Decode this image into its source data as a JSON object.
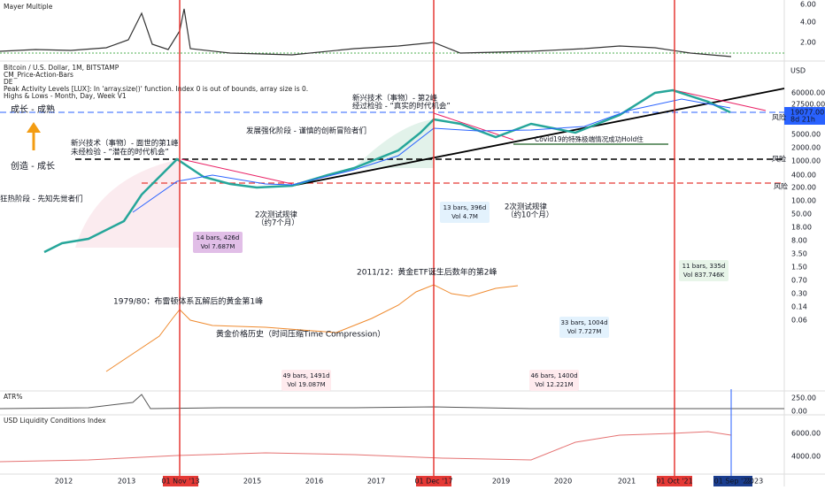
{
  "panes": {
    "mayer": {
      "title": "Mayer Multiple",
      "axis": [
        "6.00",
        "4.00",
        "2.00"
      ]
    },
    "price": {
      "header": [
        "Bitcoin / U.S. Dollar, 1M, BITSTAMP",
        "CM_Price-Action-Bars",
        "DE",
        "Peak Activity Levels [LUX]: In 'array.size()' function. Index 0 is out of bounds, array size is 0.",
        "Highs & Lows - Month, Day, Week V1"
      ],
      "axis_unit": "USD",
      "axis": [
        "60000.00",
        "27500.00",
        "5000.00",
        "2000.00",
        "1000.00",
        "400.00",
        "200.00",
        "100.00",
        "50.00",
        "18.00",
        "8.00",
        "3.50",
        "1.50",
        "0.70",
        "0.30",
        "0.14",
        "0.06"
      ],
      "last_price": "19077.00",
      "countdown": "8d 21h",
      "risk": [
        "风险",
        "风险",
        "风险"
      ]
    },
    "atr": {
      "title": "ATR%",
      "axis": [
        "250.00",
        "0.00"
      ]
    },
    "liquidity": {
      "title": "USD Liquidity Conditions Index",
      "axis": [
        "6000.00",
        "4000.00"
      ]
    }
  },
  "annotations": [
    {
      "text": "成长 - 成熟"
    },
    {
      "text": "创造 - 成长"
    },
    {
      "text": "狂热阶段 - 先知先觉者们"
    },
    {
      "text": "新兴技术（事物）- 面世的第1峰"
    },
    {
      "text": "未经检验 - “潜在的时代机会”"
    },
    {
      "text": "发展强化阶段 - 谨慎的创新冒险者们"
    },
    {
      "text": "新兴技术（事物）- 第2峰"
    },
    {
      "text": "经过检验 - “真实的时代机会”"
    },
    {
      "text": "Covid19的特殊极端情况成功Hold住"
    },
    {
      "text": "2次测试规律"
    },
    {
      "text": "（约7个月）"
    },
    {
      "text": "2次测试规律"
    },
    {
      "text": "（约10个月）"
    },
    {
      "text": "2011/12：黄金ETF诞生后数年的第2峰"
    },
    {
      "text": "1979/80：布雷顿体系瓦解后的黄金第1峰"
    },
    {
      "text": "黄金价格历史（时间压缩Time Compression）"
    }
  ],
  "boxes": [
    {
      "line1": "14 bars, 426d",
      "line2": "Vol 7.687M"
    },
    {
      "line1": "13 bars, 396d",
      "line2": "Vol 4.7M"
    },
    {
      "line1": "11 bars, 335d",
      "line2": "Vol 837.746K"
    },
    {
      "line1": "33 bars, 1004d",
      "line2": "Vol 7.727M"
    },
    {
      "line1": "49 bars, 1491d",
      "line2": "Vol 19.087M"
    },
    {
      "line1": "46 bars, 1400d",
      "line2": "Vol 12.221M"
    }
  ],
  "x_axis": [
    "2012",
    "2013",
    "01 Nov '13",
    "2015",
    "2016",
    "2017",
    "01 Dec '17",
    "2019",
    "2020",
    "2021",
    "01 Oct '21",
    "01 Sep '22",
    "2023"
  ]
}
